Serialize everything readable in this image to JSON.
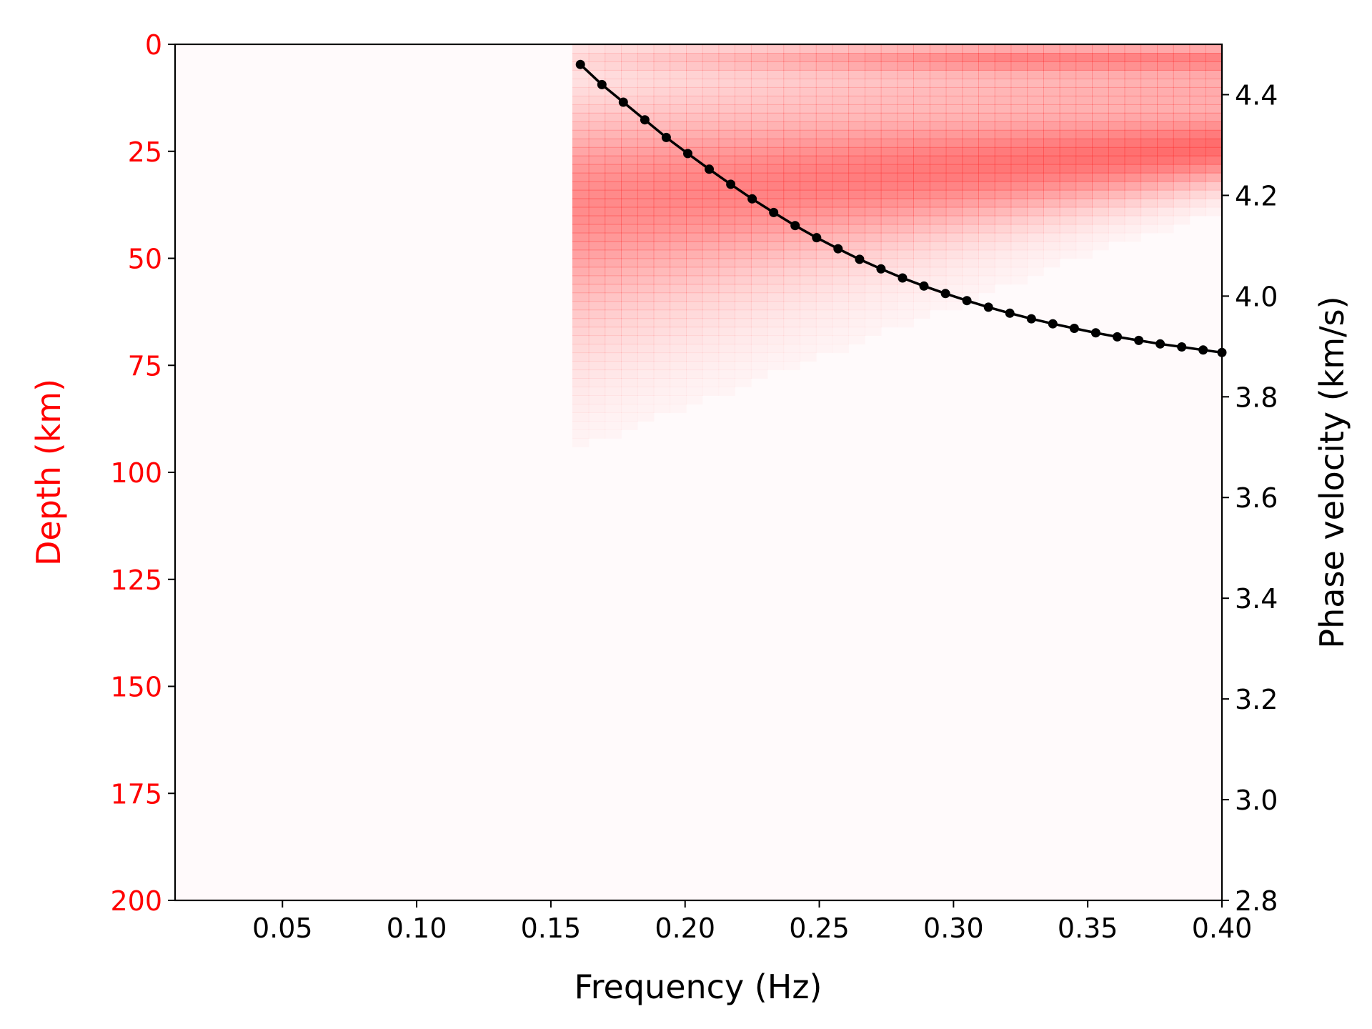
{
  "chart_data": {
    "type": "heatmap",
    "xlabel": "Frequency (Hz)",
    "ylabel_left": "Depth (km)",
    "ylabel_right": "Phase velocity (km/s)",
    "xlim": [
      0.01,
      0.4
    ],
    "ylim_left": [
      0,
      200
    ],
    "ylim_left_inverted": true,
    "ylim_right": [
      2.8,
      4.5
    ],
    "x_ticks": [
      0.05,
      0.1,
      0.15,
      0.2,
      0.25,
      0.3,
      0.35,
      0.4
    ],
    "x_tick_labels": [
      "0.05",
      "0.10",
      "0.15",
      "0.20",
      "0.25",
      "0.30",
      "0.35",
      "0.40"
    ],
    "y_left_ticks": [
      0,
      25,
      50,
      75,
      100,
      125,
      150,
      175,
      200
    ],
    "y_left_tick_labels": [
      "0",
      "25",
      "50",
      "75",
      "100",
      "125",
      "150",
      "175",
      "200"
    ],
    "y_right_ticks": [
      2.8,
      3.0,
      3.2,
      3.4,
      3.6,
      3.8,
      4.0,
      4.2,
      4.4
    ],
    "y_right_tick_labels": [
      "2.8",
      "3.0",
      "3.2",
      "3.4",
      "3.6",
      "3.8",
      "4.0",
      "4.2",
      "4.4"
    ],
    "grid": false,
    "colors": {
      "left_axis": "#ff0000",
      "heat": "#ff3b3b",
      "curve": "#000000",
      "background": "#fffafb"
    },
    "heatmap": {
      "x_start": 0.158,
      "x_end": 0.4,
      "depth_start": 0,
      "depth_end": 200,
      "description_of_values": "sensitivity kernel intensity 0-1"
    },
    "series": [
      {
        "x": [
          0.161,
          0.169,
          0.177,
          0.185,
          0.193,
          0.201,
          0.209,
          0.217,
          0.225,
          0.233,
          0.241,
          0.249,
          0.257,
          0.265,
          0.273,
          0.281,
          0.289,
          0.297,
          0.305,
          0.313,
          0.321,
          0.329,
          0.337,
          0.345,
          0.353,
          0.361,
          0.369,
          0.377,
          0.385,
          0.393,
          0.4
        ],
        "y": [
          4.46,
          4.42,
          4.385,
          4.35,
          4.315,
          4.283,
          4.252,
          4.222,
          4.193,
          4.166,
          4.14,
          4.116,
          4.094,
          4.073,
          4.054,
          4.036,
          4.02,
          4.005,
          3.991,
          3.978,
          3.966,
          3.955,
          3.945,
          3.936,
          3.927,
          3.919,
          3.912,
          3.905,
          3.899,
          3.893,
          3.888
        ]
      }
    ]
  }
}
